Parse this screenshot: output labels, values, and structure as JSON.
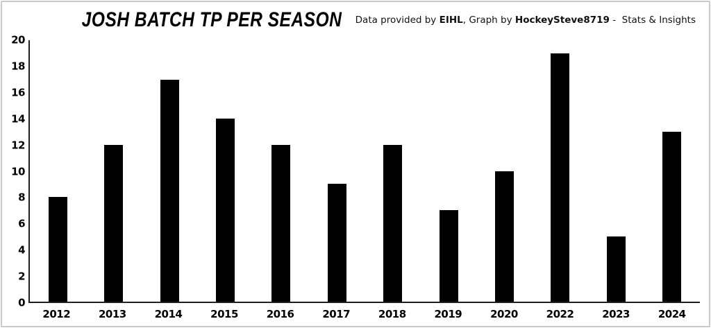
{
  "header": {
    "title": "JOSH BATCH TP PER SEASON",
    "attribution": {
      "prefix": "Data provided by ",
      "source": "EIHL",
      "middle": ", Graph by ",
      "author": "HockeySteve8719",
      "suffix": " -  Stats & Insights"
    }
  },
  "chart_data": {
    "type": "bar",
    "title": "JOSH BATCH TP PER SEASON",
    "categories": [
      "2012",
      "2013",
      "2014",
      "2015",
      "2016",
      "2017",
      "2018",
      "2019",
      "2020",
      "2022",
      "2023",
      "2024"
    ],
    "values": [
      8,
      12,
      17,
      14,
      12,
      9,
      12,
      7,
      10,
      19,
      5,
      13
    ],
    "xlabel": "",
    "ylabel": "",
    "ylim": [
      0,
      20
    ],
    "yticks": [
      0,
      2,
      4,
      6,
      8,
      10,
      12,
      14,
      16,
      18,
      20
    ],
    "grid": false,
    "legend": false,
    "bar_color": "#000000",
    "axis_color": "#1f1f1f"
  },
  "colors": {
    "background": "#ffffff",
    "frame_border": "#c9c9c9",
    "text": "#000000"
  }
}
